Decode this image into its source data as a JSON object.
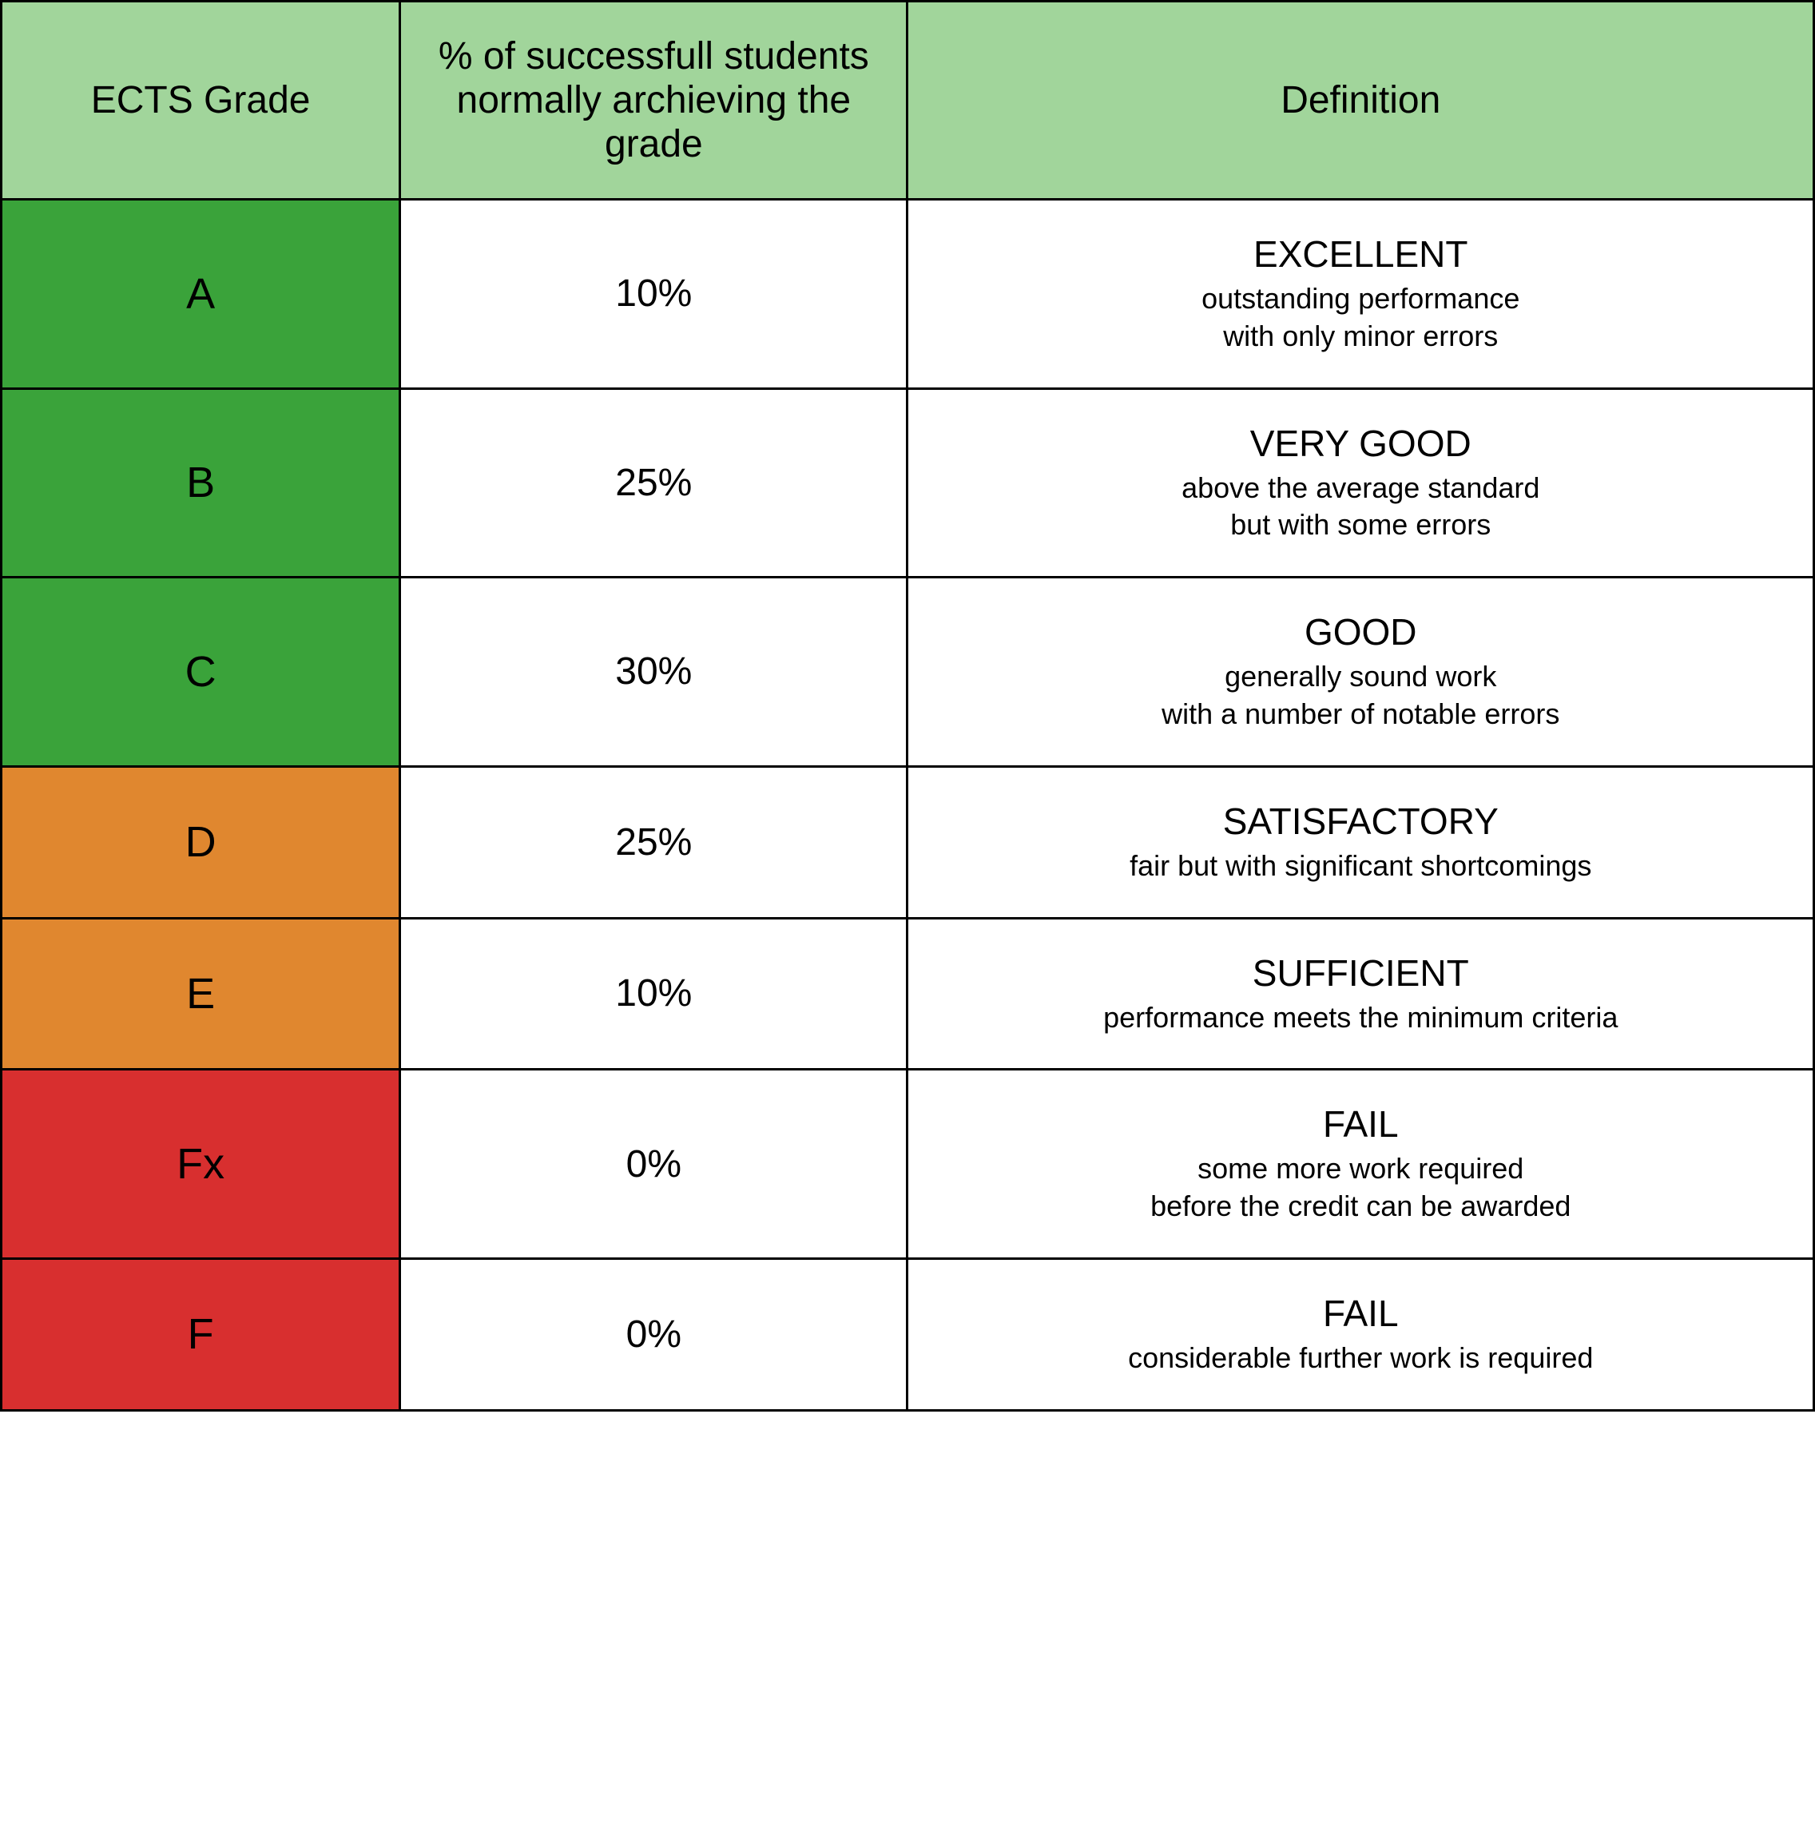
{
  "table": {
    "type": "table",
    "header_background": "#a1d59b",
    "border_color": "#000000",
    "border_width": 3,
    "text_color": "#000000",
    "font_family": "Verdana",
    "header_font_size": 48,
    "body_font_size": 48,
    "grade_font_size": 54,
    "def_title_font_size": 46,
    "def_sub_font_size": 36,
    "column_widths_pct": [
      22,
      28,
      50
    ],
    "grade_colors": {
      "green": "#3aa33a",
      "orange": "#e0872f",
      "red": "#d82f2f"
    },
    "columns": [
      "ECTS Grade",
      "% of successfull students normally archieving the grade",
      "Definition"
    ],
    "rows": [
      {
        "grade": "A",
        "percent": "10%",
        "def_title": "EXCELLENT",
        "def_sub": "outstanding performance\nwith only minor errors",
        "color_class": "grade-green"
      },
      {
        "grade": "B",
        "percent": "25%",
        "def_title": "VERY GOOD",
        "def_sub": "above the average standard\nbut with some errors",
        "color_class": "grade-green"
      },
      {
        "grade": "C",
        "percent": "30%",
        "def_title": "GOOD",
        "def_sub": "generally sound work\nwith a number of notable errors",
        "color_class": "grade-green"
      },
      {
        "grade": "D",
        "percent": "25%",
        "def_title": "SATISFACTORY",
        "def_sub": "fair but with significant shortcomings",
        "color_class": "grade-orange"
      },
      {
        "grade": "E",
        "percent": "10%",
        "def_title": "SUFFICIENT",
        "def_sub": "performance meets the minimum criteria",
        "color_class": "grade-orange"
      },
      {
        "grade": "Fx",
        "percent": "0%",
        "def_title": "FAIL",
        "def_sub": "some more work required\nbefore the credit can be awarded",
        "color_class": "grade-red"
      },
      {
        "grade": "F",
        "percent": "0%",
        "def_title": "FAIL",
        "def_sub": "considerable further work is required",
        "color_class": "grade-red"
      }
    ]
  }
}
